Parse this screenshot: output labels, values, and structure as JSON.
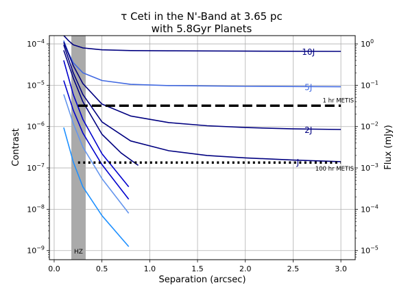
{
  "chart_data": {
    "type": "line",
    "title_line1": "τ Ceti in the N'-Band at 3.65 pc",
    "title_line2": "with 5.8Gyr Planets",
    "xlabel": "Separation (arcsec)",
    "ylabel": "Contrast",
    "ylabel_right": "Flux (mJy)",
    "xlim": [
      -0.05,
      3.15
    ],
    "ylim_log10": [
      -9.22,
      -3.8
    ],
    "yscale": "log",
    "grid": true,
    "x_ticks": [
      {
        "value": 0.0,
        "label": "0.0"
      },
      {
        "value": 0.5,
        "label": "0.5"
      },
      {
        "value": 1.0,
        "label": "1.0"
      },
      {
        "value": 1.5,
        "label": "1.5"
      },
      {
        "value": 2.0,
        "label": "2.0"
      },
      {
        "value": 2.5,
        "label": "2.5"
      },
      {
        "value": 3.0,
        "label": "3.0"
      }
    ],
    "y_ticks": [
      {
        "exp": -9,
        "base": "10",
        "sup": "−9"
      },
      {
        "exp": -8,
        "base": "10",
        "sup": "−8"
      },
      {
        "exp": -7,
        "base": "10",
        "sup": "−7"
      },
      {
        "exp": -6,
        "base": "10",
        "sup": "−6"
      },
      {
        "exp": -5,
        "base": "10",
        "sup": "−5"
      },
      {
        "exp": -4,
        "base": "10",
        "sup": "−4"
      }
    ],
    "y_ticks_right": [
      {
        "exp": -9,
        "base": "10",
        "sup": "−5"
      },
      {
        "exp": -8,
        "base": "10",
        "sup": "−4"
      },
      {
        "exp": -7,
        "base": "10",
        "sup": "−3"
      },
      {
        "exp": -6,
        "base": "10",
        "sup": "−2"
      },
      {
        "exp": -5,
        "base": "10",
        "sup": "−1"
      },
      {
        "exp": -4,
        "base": "10",
        "sup": "0"
      }
    ],
    "hz_band": {
      "x_range": [
        0.18,
        0.33
      ],
      "label": "HZ",
      "color": "#aaaaaa"
    },
    "limits": [
      {
        "label": "1 hr METIS",
        "contrast": 3.2e-06,
        "x_range": [
          0.25,
          3.0
        ],
        "style": "dashed"
      },
      {
        "label": "100 hr METIS",
        "contrast": 1.35e-07,
        "x_range": [
          0.25,
          3.0
        ],
        "style": "dotted"
      }
    ],
    "series": [
      {
        "label": "10J",
        "color": "#000080",
        "x": [
          0.1,
          0.15,
          0.2,
          0.3,
          0.5,
          0.8,
          1.2,
          2.0,
          3.0
        ],
        "y": [
          0.00016,
          0.00012,
          9.5e-05,
          8e-05,
          7.2e-05,
          6.9e-05,
          6.8e-05,
          6.7e-05,
          6.6e-05
        ]
      },
      {
        "label": "5J",
        "color": "#4169e1",
        "x": [
          0.1,
          0.15,
          0.2,
          0.3,
          0.5,
          0.8,
          1.2,
          2.0,
          3.0
        ],
        "y": [
          0.00012,
          6e-05,
          3.5e-05,
          2e-05,
          1.3e-05,
          1.05e-05,
          9.8e-06,
          9.4e-06,
          9.2e-06
        ]
      },
      {
        "label": "2J",
        "color": "#000080",
        "x": [
          0.1,
          0.2,
          0.3,
          0.5,
          0.8,
          1.2,
          1.6,
          2.0,
          2.5,
          3.0
        ],
        "y": [
          0.00011,
          3e-05,
          1.1e-05,
          3.5e-06,
          1.8e-06,
          1.25e-06,
          1.05e-06,
          9.5e-07,
          8.8e-07,
          8.5e-07
        ]
      },
      {
        "label": "J",
        "color": "#000080",
        "x": [
          0.1,
          0.2,
          0.3,
          0.5,
          0.8,
          1.2,
          1.6,
          2.0,
          2.5,
          3.0
        ],
        "y": [
          9.5e-05,
          2e-05,
          6e-06,
          1.3e-06,
          4.5e-07,
          2.6e-07,
          2e-07,
          1.75e-07,
          1.55e-07,
          1.42e-07
        ]
      },
      {
        "label": "",
        "color": "#000080",
        "x": [
          0.1,
          0.2,
          0.3,
          0.5,
          0.7,
          0.88
        ],
        "y": [
          7e-05,
          1.5e-05,
          4e-06,
          6.5e-07,
          2.3e-07,
          1.15e-07
        ]
      },
      {
        "label": "",
        "color": "#0000cd",
        "x": [
          0.1,
          0.2,
          0.3,
          0.5,
          0.78
        ],
        "y": [
          4e-05,
          6e-06,
          1.5e-06,
          2.2e-07,
          3.5e-08
        ]
      },
      {
        "label": "",
        "color": "#0000cd",
        "x": [
          0.1,
          0.2,
          0.3,
          0.5,
          0.78
        ],
        "y": [
          1.3e-05,
          2.5e-06,
          7e-07,
          1.2e-07,
          1.75e-08
        ]
      },
      {
        "label": "",
        "color": "#6495ed",
        "x": [
          0.1,
          0.2,
          0.3,
          0.5,
          0.78
        ],
        "y": [
          6e-06,
          1.2e-06,
          3.2e-07,
          5.5e-08,
          8e-09
        ]
      },
      {
        "label": "",
        "color": "#1e90ff",
        "x": [
          0.1,
          0.2,
          0.3,
          0.5,
          0.78
        ],
        "y": [
          9.5e-07,
          1.4e-07,
          3.5e-08,
          7e-09,
          1.25e-09
        ]
      }
    ]
  }
}
